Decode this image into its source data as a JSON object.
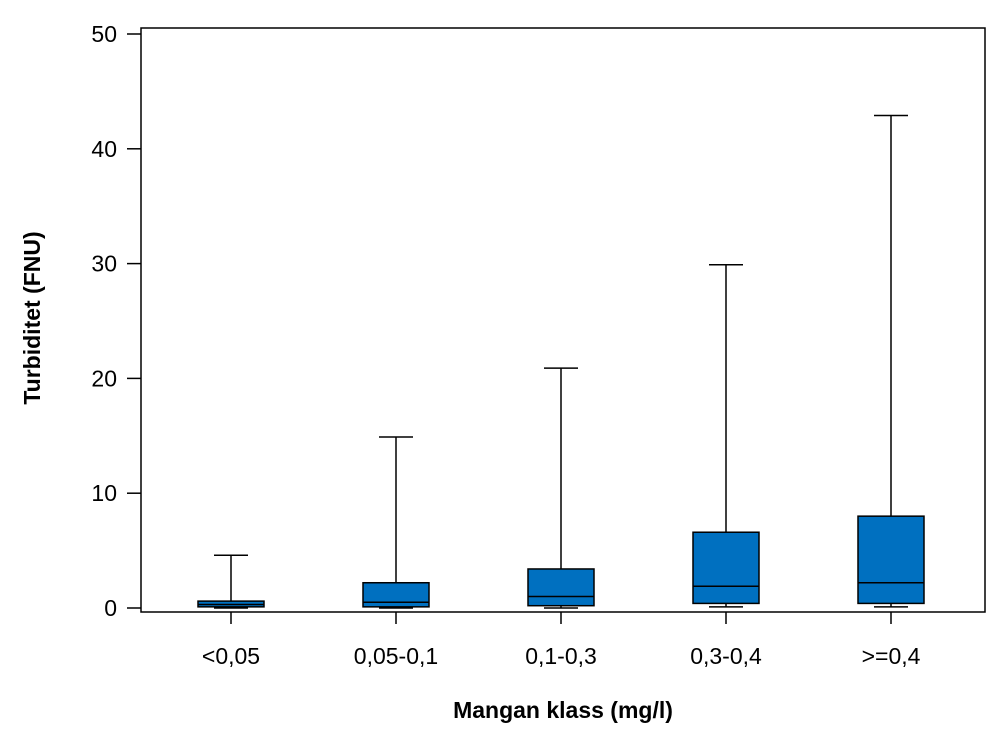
{
  "chart_data": {
    "type": "boxplot",
    "title": "",
    "xlabel": "Mangan klass (mg/l)",
    "ylabel": "Turbiditet (FNU)",
    "ylim": [
      0,
      50
    ],
    "yticks": [
      0,
      10,
      20,
      30,
      40,
      50
    ],
    "grid": false,
    "legend": "none",
    "box_color": "#0070C0",
    "line_color": "#000000",
    "categories": [
      "<0,05",
      "0,05-0,1",
      "0,1-0,3",
      "0,3-0,4",
      ">=0,4"
    ],
    "boxes": [
      {
        "category": "<0,05",
        "whisker_low": 0.0,
        "q1": 0.1,
        "median": 0.3,
        "q3": 0.6,
        "whisker_high": 4.6
      },
      {
        "category": "0,05-0,1",
        "whisker_low": 0.0,
        "q1": 0.1,
        "median": 0.5,
        "q3": 2.2,
        "whisker_high": 14.9
      },
      {
        "category": "0,1-0,3",
        "whisker_low": 0.0,
        "q1": 0.2,
        "median": 1.0,
        "q3": 3.4,
        "whisker_high": 20.9
      },
      {
        "category": "0,3-0,4",
        "whisker_low": 0.1,
        "q1": 0.4,
        "median": 1.9,
        "q3": 6.6,
        "whisker_high": 29.9
      },
      {
        "category": ">=0,4",
        "whisker_low": 0.1,
        "q1": 0.4,
        "median": 2.2,
        "q3": 8.0,
        "whisker_high": 42.9
      }
    ]
  }
}
